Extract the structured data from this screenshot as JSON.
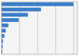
{
  "chart_data": {
    "type": "bar",
    "orientation": "horizontal",
    "categories": [
      null,
      null,
      null,
      null,
      null,
      null,
      null,
      null,
      null,
      null
    ],
    "values": [
      39.77,
      21.79,
      14.58,
      9.51,
      3.76,
      2.35,
      1.57,
      0.78,
      0.59,
      0.39
    ],
    "color": "#3c7ec8",
    "xlim": [
      0,
      42
    ],
    "xticks": [
      0,
      10,
      20,
      30,
      40
    ],
    "grid": true,
    "tick_labels": false
  }
}
